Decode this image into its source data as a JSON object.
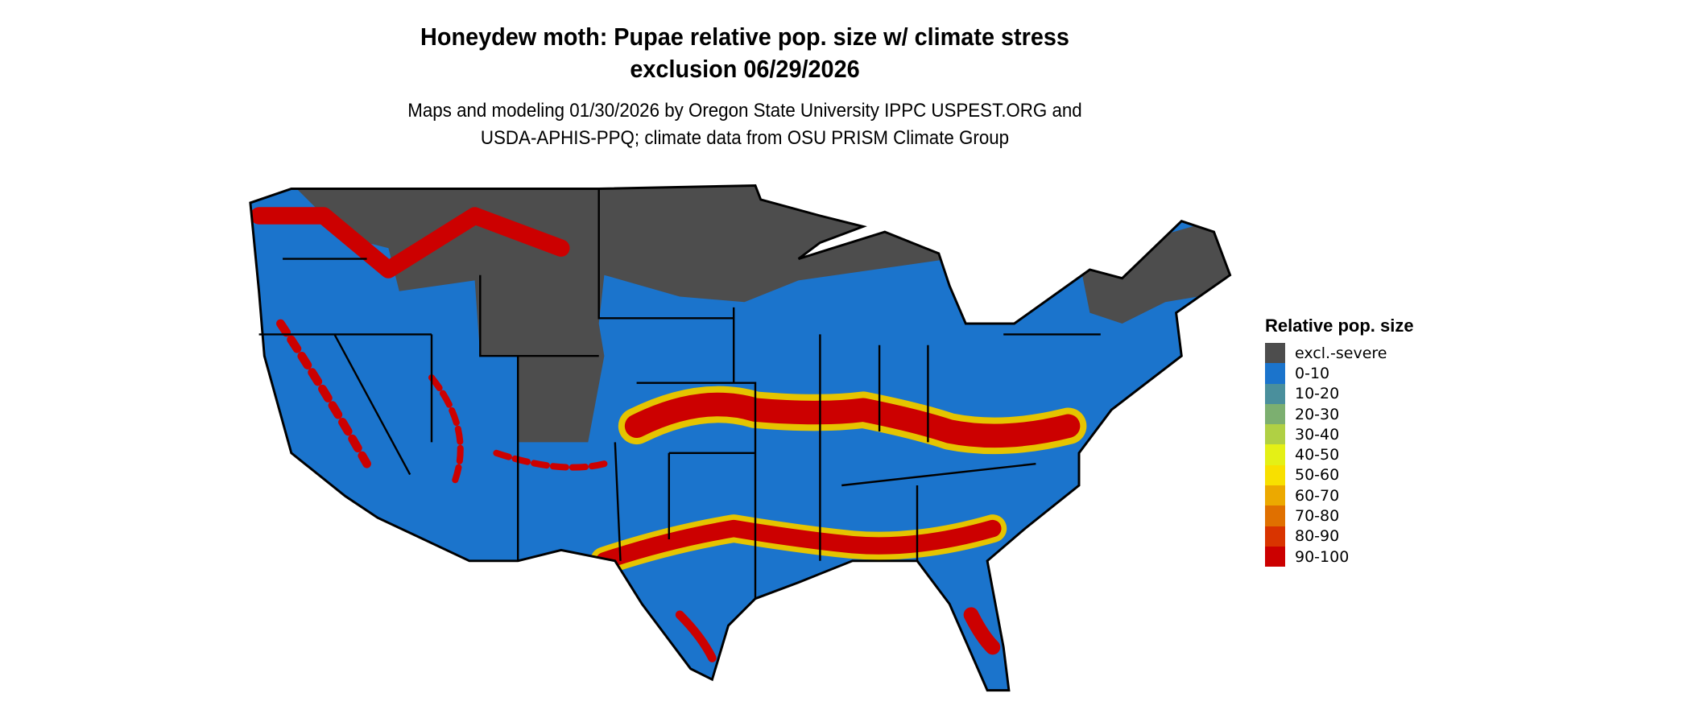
{
  "title": {
    "line1": "Honeydew moth: Pupae relative pop. size w/ climate stress",
    "line2": "exclusion 06/29/2026"
  },
  "subtitle": {
    "line1": "Maps and modeling 01/30/2026 by Oregon State University IPPC USPEST.ORG and",
    "line2": "USDA-APHIS-PPQ; climate data from OSU PRISM Climate Group"
  },
  "legend": {
    "title": "Relative pop. size",
    "items": [
      {
        "label": "excl.-severe",
        "color": "#4d4d4d"
      },
      {
        "label": "0-10",
        "color": "#1b74cc"
      },
      {
        "label": "10-20",
        "color": "#4a8f9c"
      },
      {
        "label": "20-30",
        "color": "#7caf70"
      },
      {
        "label": "30-40",
        "color": "#b0d044"
      },
      {
        "label": "40-50",
        "color": "#e4f016"
      },
      {
        "label": "50-60",
        "color": "#f8e000"
      },
      {
        "label": "60-70",
        "color": "#eca900"
      },
      {
        "label": "70-80",
        "color": "#e07000"
      },
      {
        "label": "80-90",
        "color": "#d93400"
      },
      {
        "label": "90-100",
        "color": "#cc0000"
      }
    ]
  }
}
